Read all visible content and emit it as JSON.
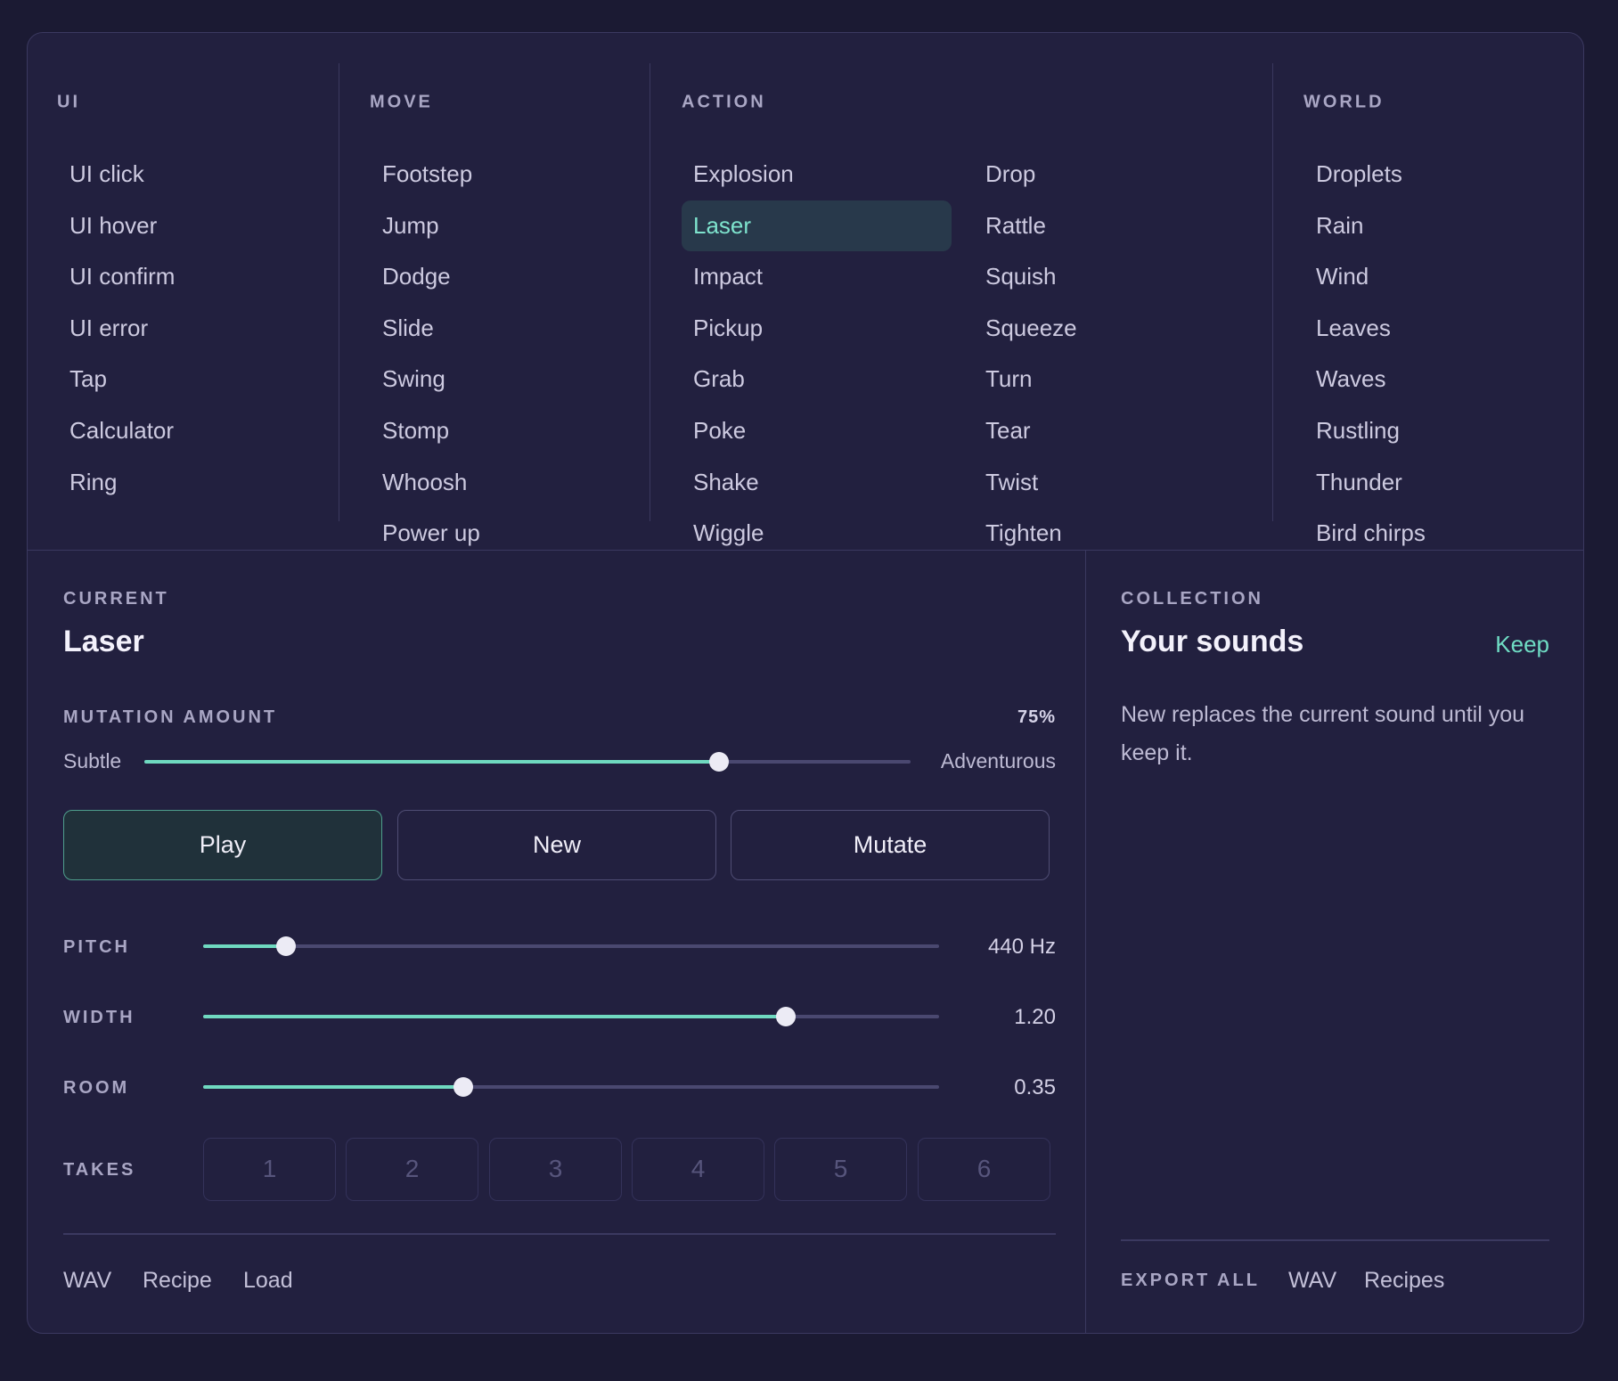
{
  "categories": [
    {
      "heading": "UI",
      "items": [
        "UI click",
        "UI hover",
        "UI confirm",
        "UI error",
        "Tap",
        "Calculator",
        "Ring"
      ]
    },
    {
      "heading": "MOVE",
      "items": [
        "Footstep",
        "Jump",
        "Dodge",
        "Slide",
        "Swing",
        "Stomp",
        "Whoosh",
        "Power up"
      ]
    },
    {
      "heading": "ACTION",
      "items": [
        "Explosion",
        "Laser",
        "Impact",
        "Pickup",
        "Grab",
        "Poke",
        "Shake",
        "Wiggle"
      ],
      "items2": [
        "Drop",
        "Rattle",
        "Squish",
        "Squeeze",
        "Turn",
        "Tear",
        "Twist",
        "Tighten"
      ],
      "selected": "Laser"
    },
    {
      "heading": "WORLD",
      "items": [
        "Droplets",
        "Rain",
        "Wind",
        "Leaves",
        "Waves",
        "Rustling",
        "Thunder",
        "Bird chirps"
      ]
    }
  ],
  "current": {
    "label": "CURRENT",
    "title": "Laser",
    "mutation": {
      "label": "MUTATION AMOUNT",
      "value_text": "75%",
      "value": 0.75,
      "min_label": "Subtle",
      "max_label": "Adventurous"
    },
    "buttons": {
      "play": "Play",
      "new": "New",
      "mutate": "Mutate"
    },
    "params": [
      {
        "label": "PITCH",
        "value_text": "440 Hz",
        "fraction": 0.113
      },
      {
        "label": "WIDTH",
        "value_text": "1.20",
        "fraction": 0.792
      },
      {
        "label": "ROOM",
        "value_text": "0.35",
        "fraction": 0.354
      }
    ],
    "takes_label": "TAKES",
    "takes": [
      "1",
      "2",
      "3",
      "4",
      "5",
      "6"
    ],
    "footer_links": [
      "WAV",
      "Recipe",
      "Load"
    ]
  },
  "collection": {
    "label": "COLLECTION",
    "title": "Your sounds",
    "keep": "Keep",
    "description": "New replaces the current sound until you keep it.",
    "export_label": "EXPORT ALL",
    "export_links": [
      "WAV",
      "Recipes"
    ]
  },
  "colors": {
    "background": "#1b1a33",
    "panel": "#22203f",
    "accent": "#6fd9c0",
    "selected_bg": "#28394b"
  }
}
